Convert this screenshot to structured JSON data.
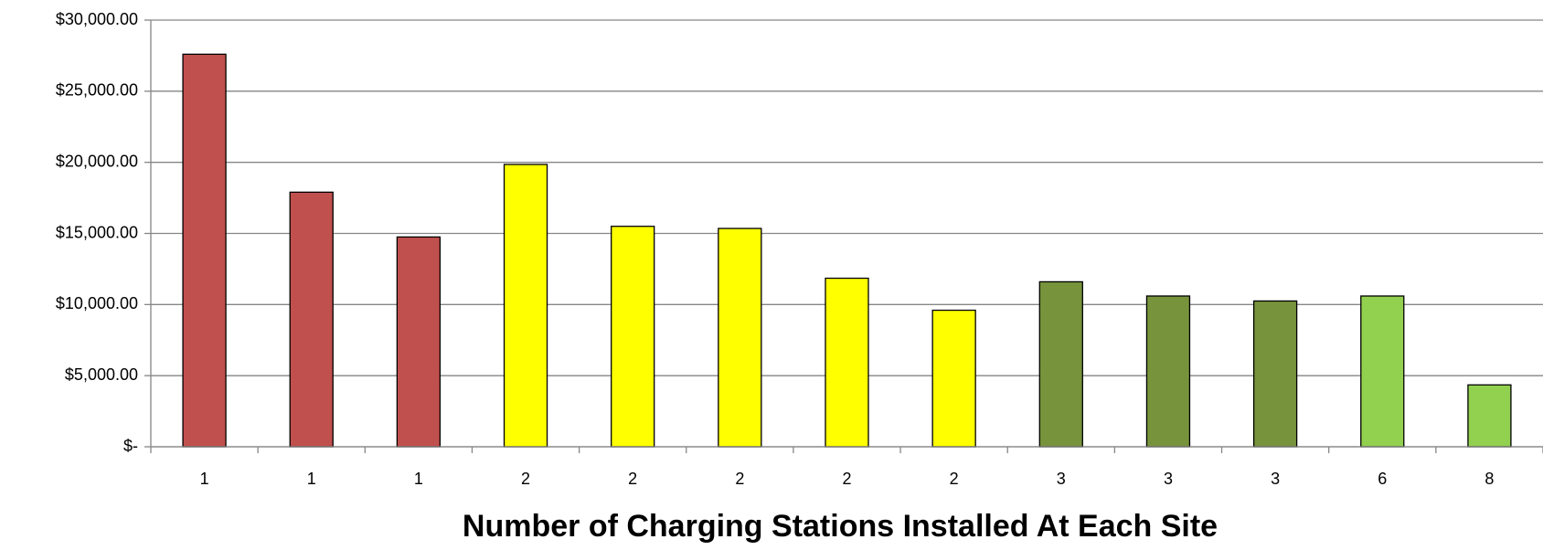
{
  "chart_data": {
    "type": "bar",
    "x_label": "Number of Charging Stations Installed At Each Site",
    "categories": [
      "1",
      "1",
      "1",
      "2",
      "2",
      "2",
      "2",
      "2",
      "3",
      "3",
      "3",
      "6",
      "8"
    ],
    "values": [
      27600,
      17900,
      14750,
      19850,
      15500,
      15350,
      11850,
      9600,
      11600,
      10600,
      10250,
      10600,
      4350
    ],
    "colors": [
      "#c0504d",
      "#c0504d",
      "#c0504d",
      "#ffff00",
      "#ffff00",
      "#ffff00",
      "#ffff00",
      "#ffff00",
      "#77933c",
      "#77933c",
      "#77933c",
      "#92d050",
      "#92d050"
    ],
    "ylim": [
      0,
      30000
    ],
    "yticks": [
      {
        "value": 0,
        "label": "$-"
      },
      {
        "value": 5000,
        "label": "$5,000.00"
      },
      {
        "value": 10000,
        "label": "$10,000.00"
      },
      {
        "value": 15000,
        "label": "$15,000.00"
      },
      {
        "value": 20000,
        "label": "$20,000.00"
      },
      {
        "value": 25000,
        "label": "$25,000.00"
      },
      {
        "value": 30000,
        "label": "$30,000.00"
      }
    ],
    "grid": true
  }
}
